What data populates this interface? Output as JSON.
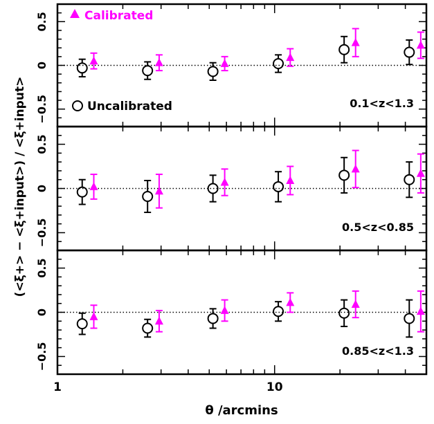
{
  "chart_data": {
    "type": "scatter",
    "xlabel": "θ /arcmins",
    "ylabel": "(<ξ+> − <ξ+input>) / <ξ+input>",
    "xscale": "log",
    "xlim": [
      1,
      50
    ],
    "xticks": [
      {
        "value": 1,
        "label": "1"
      },
      {
        "value": 10,
        "label": "10"
      }
    ],
    "ylim": [
      -0.7,
      0.7
    ],
    "yticks": [
      0.5,
      0,
      -0.5
    ],
    "ytick_labels": [
      "0.5",
      "0",
      "−0.5"
    ],
    "zero_line": "dotted",
    "legend": {
      "calibrated": {
        "label": "Calibrated",
        "marker": "filled-triangle",
        "color": "#ff00ff"
      },
      "uncalibrated": {
        "label": "Uncalibrated",
        "marker": "open-circle",
        "color": "#000000"
      }
    },
    "panels": [
      {
        "label": "0.1<z<1.3",
        "series": [
          {
            "key": "uncalibrated",
            "points": [
              {
                "x": 1.3,
                "y": -0.03,
                "err": 0.1
              },
              {
                "x": 2.6,
                "y": -0.06,
                "err": 0.1
              },
              {
                "x": 5.2,
                "y": -0.07,
                "err": 0.1
              },
              {
                "x": 10.4,
                "y": 0.02,
                "err": 0.1
              },
              {
                "x": 20.9,
                "y": 0.18,
                "err": 0.15
              },
              {
                "x": 41.7,
                "y": 0.15,
                "err": 0.14
              }
            ]
          },
          {
            "key": "calibrated",
            "points": [
              {
                "x": 1.47,
                "y": 0.05,
                "err": 0.09
              },
              {
                "x": 2.94,
                "y": 0.03,
                "err": 0.09
              },
              {
                "x": 5.89,
                "y": 0.02,
                "err": 0.08
              },
              {
                "x": 11.8,
                "y": 0.09,
                "err": 0.1
              },
              {
                "x": 23.6,
                "y": 0.26,
                "err": 0.16
              },
              {
                "x": 47.1,
                "y": 0.23,
                "err": 0.15
              }
            ]
          }
        ]
      },
      {
        "label": "0.5<z<0.85",
        "series": [
          {
            "key": "uncalibrated",
            "points": [
              {
                "x": 1.3,
                "y": -0.04,
                "err": 0.14
              },
              {
                "x": 2.6,
                "y": -0.09,
                "err": 0.18
              },
              {
                "x": 5.2,
                "y": 0.0,
                "err": 0.15
              },
              {
                "x": 10.4,
                "y": 0.02,
                "err": 0.17
              },
              {
                "x": 20.9,
                "y": 0.15,
                "err": 0.2
              },
              {
                "x": 41.7,
                "y": 0.1,
                "err": 0.2
              }
            ]
          },
          {
            "key": "calibrated",
            "points": [
              {
                "x": 1.47,
                "y": 0.02,
                "err": 0.14
              },
              {
                "x": 2.94,
                "y": -0.03,
                "err": 0.19
              },
              {
                "x": 5.89,
                "y": 0.07,
                "err": 0.15
              },
              {
                "x": 11.8,
                "y": 0.09,
                "err": 0.16
              },
              {
                "x": 23.6,
                "y": 0.22,
                "err": 0.21
              },
              {
                "x": 47.1,
                "y": 0.17,
                "err": 0.22
              }
            ]
          }
        ]
      },
      {
        "label": "0.85<z<1.3",
        "series": [
          {
            "key": "uncalibrated",
            "points": [
              {
                "x": 1.3,
                "y": -0.13,
                "err": 0.12
              },
              {
                "x": 2.6,
                "y": -0.18,
                "err": 0.1
              },
              {
                "x": 5.2,
                "y": -0.07,
                "err": 0.11
              },
              {
                "x": 10.4,
                "y": 0.01,
                "err": 0.11
              },
              {
                "x": 20.9,
                "y": -0.01,
                "err": 0.15
              },
              {
                "x": 41.7,
                "y": -0.07,
                "err": 0.21
              }
            ]
          },
          {
            "key": "calibrated",
            "points": [
              {
                "x": 1.47,
                "y": -0.05,
                "err": 0.13
              },
              {
                "x": 2.94,
                "y": -0.1,
                "err": 0.12
              },
              {
                "x": 5.89,
                "y": 0.02,
                "err": 0.12
              },
              {
                "x": 11.8,
                "y": 0.11,
                "err": 0.11
              },
              {
                "x": 23.6,
                "y": 0.09,
                "err": 0.15
              },
              {
                "x": 47.1,
                "y": 0.01,
                "err": 0.23
              }
            ]
          }
        ]
      }
    ]
  }
}
